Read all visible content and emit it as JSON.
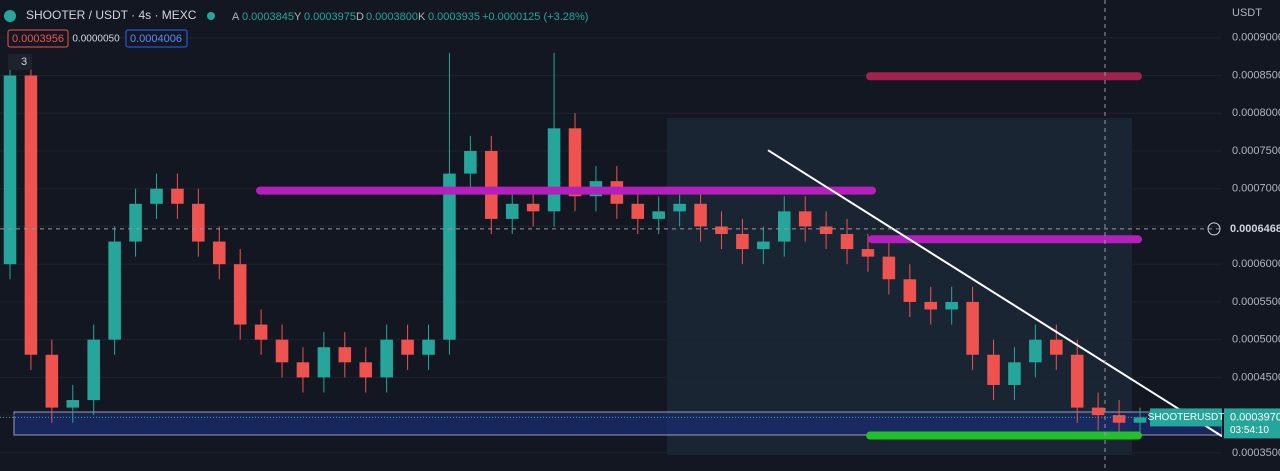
{
  "toolbar": {
    "symbol": "SHOOTER / USDT · 4s · MEXC",
    "o_label": "A",
    "o": "0.0003845",
    "h_label": "Y",
    "h": "0.0003975",
    "l_label": "D",
    "l": "0.0003800",
    "c_label": "K",
    "c": "0.0003935",
    "change": "+0.0000125 (+3.28%)",
    "sell": "0.0003956",
    "spread": "0.0000050",
    "buy": "0.0004006",
    "indicators": "3",
    "currency": "USDT"
  },
  "chart_data": {
    "type": "candlestick",
    "up_color": "#26a69a",
    "down_color": "#ef5350",
    "open": [
      0.0006,
      0.00085,
      0.00048,
      0.00041,
      0.00042,
      0.0005,
      0.00063,
      0.00068,
      0.0007,
      0.00068,
      0.00063,
      0.0006,
      0.00052,
      0.0005,
      0.00047,
      0.00045,
      0.00049,
      0.00047,
      0.00045,
      0.0005,
      0.00048,
      0.0005,
      0.00072,
      0.00075,
      0.00066,
      0.00068,
      0.00067,
      0.00078,
      0.00069,
      0.00071,
      0.00068,
      0.00066,
      0.00067,
      0.00068,
      0.00065,
      0.00064,
      0.00062,
      0.00063,
      0.00067,
      0.00065,
      0.00064,
      0.00062,
      0.00061,
      0.00058,
      0.00055,
      0.00054,
      0.00055,
      0.00048,
      0.00044,
      0.00047,
      0.0005,
      0.00048,
      0.00041,
      0.0004,
      0.00039
    ],
    "high": [
      0.00087,
      0.00087,
      0.0005,
      0.00044,
      0.00052,
      0.00065,
      0.0007,
      0.00072,
      0.00072,
      0.0007,
      0.00065,
      0.00062,
      0.00054,
      0.00052,
      0.00049,
      0.00051,
      0.00051,
      0.00049,
      0.00052,
      0.00052,
      0.00052,
      0.00088,
      0.00077,
      0.00077,
      0.0007,
      0.0007,
      0.00088,
      0.0008,
      0.00073,
      0.00073,
      0.0007,
      0.00069,
      0.0007,
      0.0007,
      0.00067,
      0.00066,
      0.00065,
      0.00069,
      0.00069,
      0.00067,
      0.00066,
      0.00064,
      0.00063,
      0.0006,
      0.00057,
      0.00057,
      0.00057,
      0.0005,
      0.00049,
      0.00052,
      0.00052,
      0.0005,
      0.00043,
      0.00042,
      0.00041
    ],
    "low": [
      0.00058,
      0.00046,
      0.00039,
      0.00039,
      0.0004,
      0.00048,
      0.00061,
      0.00066,
      0.00066,
      0.00061,
      0.00058,
      0.0005,
      0.00048,
      0.00045,
      0.00043,
      0.00043,
      0.00045,
      0.00043,
      0.00043,
      0.00046,
      0.00046,
      0.00048,
      0.0007,
      0.00064,
      0.00064,
      0.00065,
      0.00065,
      0.00067,
      0.00067,
      0.00066,
      0.00064,
      0.00064,
      0.00065,
      0.00063,
      0.00062,
      0.0006,
      0.0006,
      0.00061,
      0.00063,
      0.00062,
      0.0006,
      0.00059,
      0.00056,
      0.00053,
      0.00052,
      0.00052,
      0.00046,
      0.00042,
      0.00042,
      0.00045,
      0.00046,
      0.00039,
      0.00038,
      0.00037,
      0.00037
    ],
    "close": [
      0.00085,
      0.00048,
      0.00041,
      0.00042,
      0.0005,
      0.00063,
      0.00068,
      0.0007,
      0.00068,
      0.00063,
      0.0006,
      0.00052,
      0.0005,
      0.00047,
      0.00045,
      0.00049,
      0.00047,
      0.00045,
      0.0005,
      0.00048,
      0.0005,
      0.00072,
      0.00075,
      0.00066,
      0.00068,
      0.00067,
      0.00078,
      0.00069,
      0.00071,
      0.00068,
      0.00066,
      0.00067,
      0.00068,
      0.00065,
      0.00064,
      0.00062,
      0.00063,
      0.00067,
      0.00065,
      0.00064,
      0.00062,
      0.00061,
      0.00058,
      0.00055,
      0.00054,
      0.00055,
      0.00048,
      0.00044,
      0.00047,
      0.0005,
      0.00048,
      0.00041,
      0.0004,
      0.00039,
      0.000397
    ],
    "ylim": [
      0.000326,
      0.00095
    ],
    "yticks": [
      {
        "value": 0.00035,
        "label": "0.0003500"
      },
      {
        "value": 0.0004,
        "label": "0.0004000"
      },
      {
        "value": 0.00045,
        "label": "0.0004500"
      },
      {
        "value": 0.0005,
        "label": "0.0005000"
      },
      {
        "value": 0.00055,
        "label": "0.0005500"
      },
      {
        "value": 0.0006,
        "label": "0.0006000"
      },
      {
        "value": 0.00065,
        "label": "0.0006500"
      },
      {
        "value": 0.0007,
        "label": "0.0007000"
      },
      {
        "value": 0.00075,
        "label": "0.0007500"
      },
      {
        "value": 0.0008,
        "label": "0.0008000"
      },
      {
        "value": 0.00085,
        "label": "0.0008500"
      },
      {
        "value": 0.0009,
        "label": "0.0009000"
      }
    ],
    "grid": true,
    "levels": [
      {
        "price": 0.0006975,
        "color": "#b41fbd"
      },
      {
        "price": 0.000633,
        "color": "#b41fbd"
      },
      {
        "price": 0.000849,
        "color": "#a3214f"
      },
      {
        "price": 0.000373,
        "color": "#22c02a"
      }
    ],
    "trendline": {
      "start": 0.000751,
      "end": 0.000372,
      "color": "#ffffff"
    },
    "crosshair": {
      "value": 0.0006468,
      "label": "0.0006468"
    },
    "last_price": {
      "value": 0.000397,
      "label": "0.0003970",
      "symbol": "SHOOTERUSDT",
      "countdown": "03:54:10"
    }
  }
}
